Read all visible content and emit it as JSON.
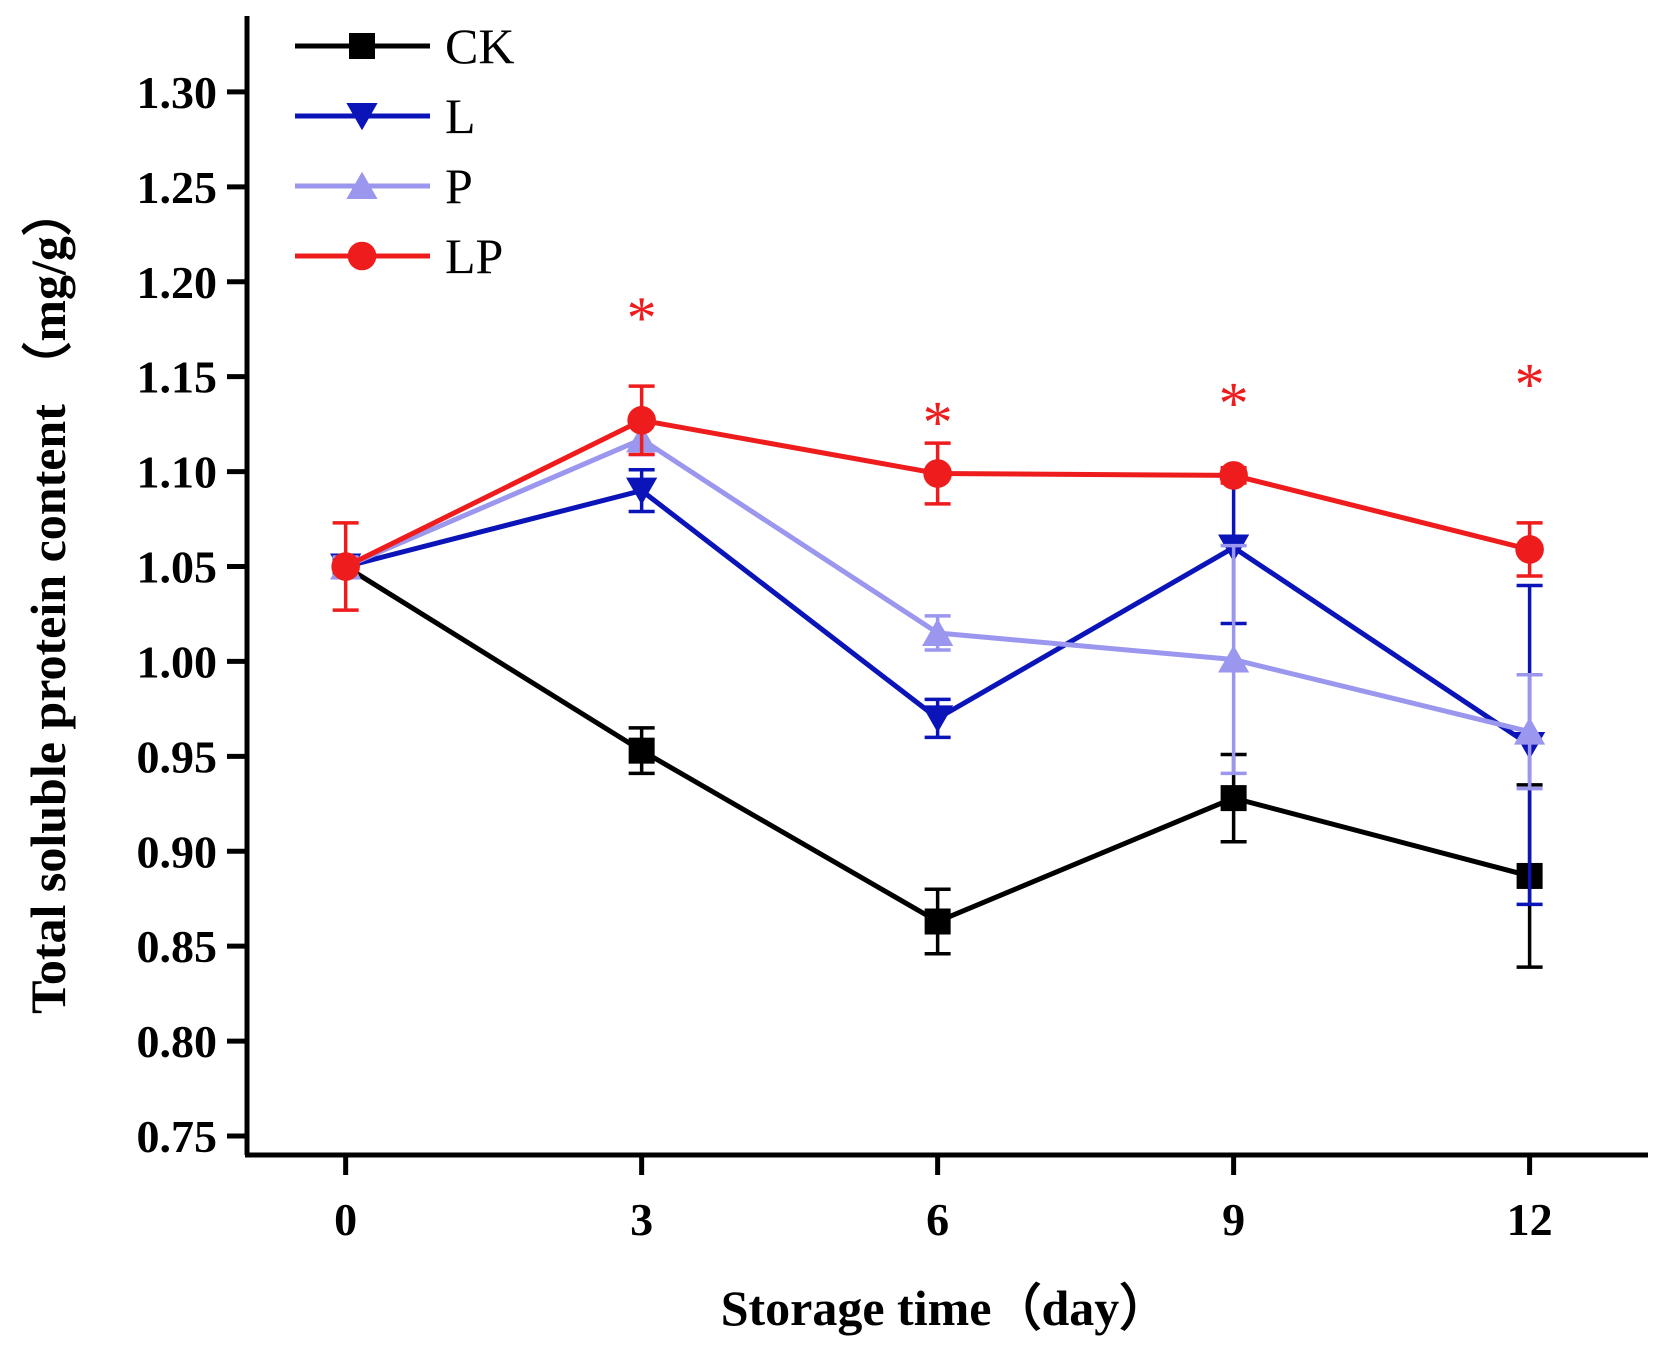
{
  "chart_data": {
    "type": "line",
    "xlabel": "Storage time（day）",
    "ylabel": "Total soluble protein content （mg/g）",
    "x": [
      0,
      3,
      6,
      9,
      12
    ],
    "xticks": [
      "0",
      "3",
      "6",
      "9",
      "12"
    ],
    "xlim": [
      -1,
      13.2
    ],
    "ylim": [
      0.74,
      1.34
    ],
    "yticks": [
      "0.75",
      "0.80",
      "0.85",
      "0.90",
      "0.95",
      "1.00",
      "1.05",
      "1.10",
      "1.15",
      "1.20",
      "1.25",
      "1.30"
    ],
    "legend_position": "top-left",
    "grid": false,
    "series": [
      {
        "name": "CK",
        "color": "#000000",
        "marker": "square",
        "values": [
          1.05,
          0.953,
          0.863,
          0.928,
          0.887
        ],
        "errors": [
          0.005,
          0.012,
          0.017,
          0.023,
          0.048
        ]
      },
      {
        "name": "L",
        "color": "#0a14b8",
        "marker": "triangle-down",
        "values": [
          1.05,
          1.09,
          0.97,
          1.06,
          0.956
        ],
        "errors": [
          0.005,
          0.011,
          0.01,
          0.04,
          0.084
        ]
      },
      {
        "name": "P",
        "color": "#9b96ee",
        "marker": "triangle-up",
        "values": [
          1.05,
          1.117,
          1.015,
          1.001,
          0.963
        ],
        "errors": [
          0.005,
          0.008,
          0.009,
          0.06,
          0.03
        ]
      },
      {
        "name": "LP",
        "color": "#ee1c1c",
        "marker": "circle",
        "values": [
          1.05,
          1.127,
          1.099,
          1.098,
          1.059
        ],
        "errors": [
          0.023,
          0.018,
          0.016,
          0.004,
          0.014
        ]
      }
    ],
    "annotations": [
      {
        "text": "*",
        "x": 3,
        "y": 1.185,
        "color": "#ee1c1c"
      },
      {
        "text": "*",
        "x": 6,
        "y": 1.13,
        "color": "#ee1c1c"
      },
      {
        "text": "*",
        "x": 9,
        "y": 1.14,
        "color": "#ee1c1c"
      },
      {
        "text": "*",
        "x": 12,
        "y": 1.15,
        "color": "#ee1c1c"
      }
    ]
  }
}
